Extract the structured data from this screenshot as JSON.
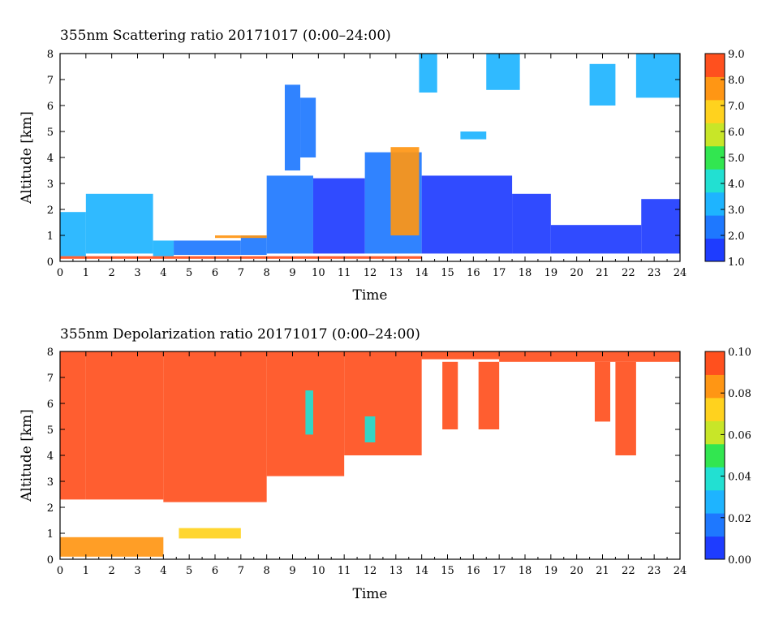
{
  "chart_data": [
    {
      "type": "heatmap",
      "title": "355nm Scattering ratio  20171017 (0:00–24:00)",
      "xlabel": "Time",
      "ylabel": "Altitude [km]",
      "xlim": [
        0,
        24
      ],
      "ylim": [
        0,
        8
      ],
      "xticks": [
        "0",
        "1",
        "2",
        "3",
        "4",
        "5",
        "6",
        "7",
        "8",
        "9",
        "10",
        "11",
        "12",
        "13",
        "14",
        "15",
        "16",
        "17",
        "18",
        "19",
        "20",
        "21",
        "22",
        "23",
        "24"
      ],
      "yticks": [
        "0",
        "1",
        "2",
        "3",
        "4",
        "5",
        "6",
        "7",
        "8"
      ],
      "colorbar": {
        "min": 1.0,
        "max": 9.0,
        "ticks": [
          "1.0",
          "2.0",
          "3.0",
          "4.0",
          "5.0",
          "6.0",
          "7.0",
          "8.0",
          "9.0"
        ],
        "colors": [
          "#1e3cff",
          "#1e78ff",
          "#1eb4ff",
          "#22e0d2",
          "#32e650",
          "#c8e628",
          "#ffd21e",
          "#ff9614",
          "#ff501e"
        ]
      },
      "regions": [
        {
          "t0": 0.0,
          "t1": 1.0,
          "z0": 0.2,
          "z1": 1.9,
          "value": 3.0
        },
        {
          "t0": 1.0,
          "t1": 3.6,
          "z0": 0.3,
          "z1": 2.6,
          "value": 2.8
        },
        {
          "t0": 3.6,
          "t1": 4.4,
          "z0": 0.2,
          "z1": 0.8,
          "value": 3.4
        },
        {
          "t0": 4.4,
          "t1": 7.0,
          "z0": 0.25,
          "z1": 0.8,
          "value": 2.3
        },
        {
          "t0": 7.0,
          "t1": 8.0,
          "z0": 0.25,
          "z1": 1.0,
          "value": 2.3
        },
        {
          "t0": 8.0,
          "t1": 9.8,
          "z0": 0.3,
          "z1": 3.3,
          "value": 2.0
        },
        {
          "t0": 9.8,
          "t1": 11.8,
          "z0": 0.3,
          "z1": 3.2,
          "value": 1.8
        },
        {
          "t0": 11.8,
          "t1": 14.0,
          "z0": 0.3,
          "z1": 4.2,
          "value": 2.2
        },
        {
          "t0": 14.0,
          "t1": 17.5,
          "z0": 0.3,
          "z1": 3.3,
          "value": 1.6
        },
        {
          "t0": 17.5,
          "t1": 19.0,
          "z0": 0.3,
          "z1": 2.6,
          "value": 1.6
        },
        {
          "t0": 19.0,
          "t1": 22.5,
          "z0": 0.3,
          "z1": 1.4,
          "value": 1.7
        },
        {
          "t0": 22.5,
          "t1": 24.0,
          "z0": 0.3,
          "z1": 2.4,
          "value": 1.6
        },
        {
          "t0": 8.7,
          "t1": 9.3,
          "z0": 3.5,
          "z1": 6.8,
          "value": 2.6
        },
        {
          "t0": 9.3,
          "t1": 9.9,
          "z0": 4.0,
          "z1": 6.3,
          "value": 2.4
        },
        {
          "t0": 12.8,
          "t1": 13.9,
          "z0": 1.0,
          "z1": 4.4,
          "value": 7.5
        },
        {
          "t0": 13.9,
          "t1": 14.6,
          "z0": 6.5,
          "z1": 8.0,
          "value": 3.0
        },
        {
          "t0": 16.5,
          "t1": 17.8,
          "z0": 6.6,
          "z1": 8.0,
          "value": 3.0
        },
        {
          "t0": 20.5,
          "t1": 21.5,
          "z0": 6.0,
          "z1": 7.6,
          "value": 3.2
        },
        {
          "t0": 22.3,
          "t1": 24.0,
          "z0": 6.3,
          "z1": 8.0,
          "value": 2.8
        },
        {
          "t0": 15.5,
          "t1": 16.5,
          "z0": 4.7,
          "z1": 5.0,
          "value": 3.0
        },
        {
          "t0": 6.0,
          "t1": 8.0,
          "z0": 0.9,
          "z1": 1.0,
          "value": 7.5
        },
        {
          "t0": 0.0,
          "t1": 14.0,
          "z0": 0.1,
          "z1": 0.2,
          "value": 8.6
        }
      ]
    },
    {
      "type": "heatmap",
      "title": "355nm Depolarization ratio  20171017 (0:00–24:00)",
      "xlabel": "Time",
      "ylabel": "Altitude [km]",
      "xlim": [
        0,
        24
      ],
      "ylim": [
        0,
        8
      ],
      "xticks": [
        "0",
        "1",
        "2",
        "3",
        "4",
        "5",
        "6",
        "7",
        "8",
        "9",
        "10",
        "11",
        "12",
        "13",
        "14",
        "15",
        "16",
        "17",
        "18",
        "19",
        "20",
        "21",
        "22",
        "23",
        "24"
      ],
      "yticks": [
        "0",
        "1",
        "2",
        "3",
        "4",
        "5",
        "6",
        "7",
        "8"
      ],
      "colorbar": {
        "min": 0.0,
        "max": 0.1,
        "ticks": [
          "0.00",
          "0.02",
          "0.04",
          "0.06",
          "0.08",
          "0.10"
        ],
        "colors": [
          "#1e3cff",
          "#1e78ff",
          "#1eb4ff",
          "#22e0d2",
          "#32e650",
          "#c8e628",
          "#ffd21e",
          "#ff9614",
          "#ff501e"
        ]
      },
      "regions": [
        {
          "t0": 0.0,
          "t1": 1.0,
          "z0": 2.3,
          "z1": 8.0,
          "value": 0.095
        },
        {
          "t0": 1.0,
          "t1": 4.0,
          "z0": 2.3,
          "z1": 8.0,
          "value": 0.095
        },
        {
          "t0": 4.0,
          "t1": 8.0,
          "z0": 2.2,
          "z1": 8.0,
          "value": 0.095
        },
        {
          "t0": 8.0,
          "t1": 11.0,
          "z0": 3.2,
          "z1": 8.0,
          "value": 0.095
        },
        {
          "t0": 11.0,
          "t1": 14.0,
          "z0": 4.0,
          "z1": 8.0,
          "value": 0.095
        },
        {
          "t0": 14.0,
          "t1": 17.0,
          "z0": 7.7,
          "z1": 8.0,
          "value": 0.09
        },
        {
          "t0": 17.0,
          "t1": 24.0,
          "z0": 7.6,
          "z1": 8.0,
          "value": 0.09
        },
        {
          "t0": 0.0,
          "t1": 4.0,
          "z0": 0.1,
          "z1": 0.85,
          "value": 0.085
        },
        {
          "t0": 4.6,
          "t1": 7.0,
          "z0": 0.8,
          "z1": 1.2,
          "value": 0.075
        },
        {
          "t0": 14.8,
          "t1": 15.4,
          "z0": 5.0,
          "z1": 7.6,
          "value": 0.095
        },
        {
          "t0": 16.2,
          "t1": 17.0,
          "z0": 5.0,
          "z1": 7.6,
          "value": 0.095
        },
        {
          "t0": 20.7,
          "t1": 21.3,
          "z0": 5.3,
          "z1": 7.6,
          "value": 0.095
        },
        {
          "t0": 21.5,
          "t1": 22.3,
          "z0": 4.0,
          "z1": 7.6,
          "value": 0.095
        },
        {
          "t0": 11.8,
          "t1": 12.2,
          "z0": 4.5,
          "z1": 5.5,
          "value": 0.04
        },
        {
          "t0": 9.5,
          "t1": 9.8,
          "z0": 4.8,
          "z1": 6.5,
          "value": 0.04
        }
      ]
    }
  ]
}
